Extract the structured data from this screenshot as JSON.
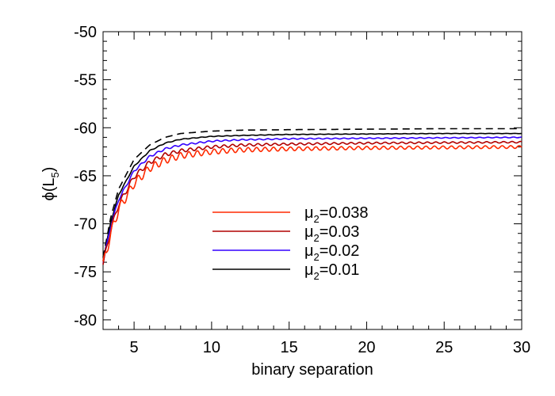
{
  "chart_data": {
    "type": "line",
    "title": "",
    "xlabel": "binary separation",
    "ylabel_main": "ϕ(L",
    "ylabel_sub": "5",
    "ylabel_close": ")",
    "xlim": [
      3,
      30
    ],
    "ylim": [
      -81,
      -50
    ],
    "xticks": [
      5,
      10,
      15,
      20,
      25,
      30
    ],
    "yticks": [
      -80,
      -75,
      -70,
      -65,
      -60,
      -55,
      -50
    ],
    "xtick_labels": [
      "5",
      "10",
      "15",
      "20",
      "25",
      "30"
    ],
    "ytick_labels": [
      "-80",
      "-75",
      "-70",
      "-65",
      "-60",
      "-55",
      "-50"
    ],
    "grid": false,
    "legend_placement": "center",
    "series": [
      {
        "name": "μ2=0.038",
        "legend_main": "μ",
        "legend_sub": "2",
        "legend_rest": "=0.038",
        "color": "#ff2a00",
        "dash": "solid",
        "x": [
          3.0,
          3.5,
          4.0,
          5.0,
          6.0,
          7.0,
          8.0,
          10.0,
          12.0,
          15.0,
          20.0,
          25.0,
          30.0
        ],
        "y": [
          -74.3,
          -71.0,
          -68.5,
          -65.8,
          -64.2,
          -63.4,
          -62.9,
          -62.5,
          -62.3,
          -62.2,
          -62.1,
          -62.05,
          -62.0
        ],
        "wiggle": 0.55
      },
      {
        "name": "μ2=0.03",
        "legend_main": "μ",
        "legend_sub": "2",
        "legend_rest": "=0.03",
        "color": "#b00000",
        "dash": "solid",
        "x": [
          3.0,
          3.5,
          4.0,
          5.0,
          6.0,
          7.0,
          8.0,
          10.0,
          12.0,
          15.0,
          20.0,
          25.0,
          30.0
        ],
        "y": [
          -74.2,
          -70.6,
          -68.0,
          -65.1,
          -63.6,
          -62.8,
          -62.4,
          -62.0,
          -61.8,
          -61.7,
          -61.6,
          -61.55,
          -61.5
        ],
        "wiggle": 0.3
      },
      {
        "name": "μ2=0.02",
        "legend_main": "μ",
        "legend_sub": "2",
        "legend_rest": "=0.02",
        "color": "#3300ff",
        "dash": "solid",
        "x": [
          3.0,
          3.5,
          4.0,
          5.0,
          6.0,
          7.0,
          8.0,
          10.0,
          12.0,
          15.0,
          20.0,
          25.0,
          30.0
        ],
        "y": [
          -74.0,
          -70.2,
          -67.5,
          -64.5,
          -63.0,
          -62.2,
          -61.8,
          -61.4,
          -61.25,
          -61.15,
          -61.1,
          -61.05,
          -61.0
        ],
        "wiggle": 0.15
      },
      {
        "name": "μ2=0.01",
        "legend_main": "μ",
        "legend_sub": "2",
        "legend_rest": "=0.01",
        "color": "#000000",
        "dash": "solid",
        "x": [
          3.0,
          3.5,
          4.0,
          5.0,
          6.0,
          7.0,
          8.0,
          10.0,
          12.0,
          15.0,
          20.0,
          25.0,
          30.0
        ],
        "y": [
          -73.8,
          -69.8,
          -67.0,
          -64.0,
          -62.4,
          -61.6,
          -61.2,
          -60.9,
          -60.8,
          -60.7,
          -60.65,
          -60.6,
          -60.6
        ],
        "wiggle": 0.06
      },
      {
        "name": "",
        "color": "#000000",
        "dash": "dashed",
        "x": [
          3.0,
          3.5,
          4.0,
          5.0,
          6.0,
          7.0,
          8.0,
          10.0,
          12.0,
          15.0,
          20.0,
          25.0,
          30.0
        ],
        "y": [
          -73.5,
          -69.3,
          -66.4,
          -63.3,
          -61.8,
          -61.0,
          -60.6,
          -60.35,
          -60.25,
          -60.2,
          -60.15,
          -60.1,
          -60.1
        ],
        "wiggle": 0
      }
    ]
  }
}
